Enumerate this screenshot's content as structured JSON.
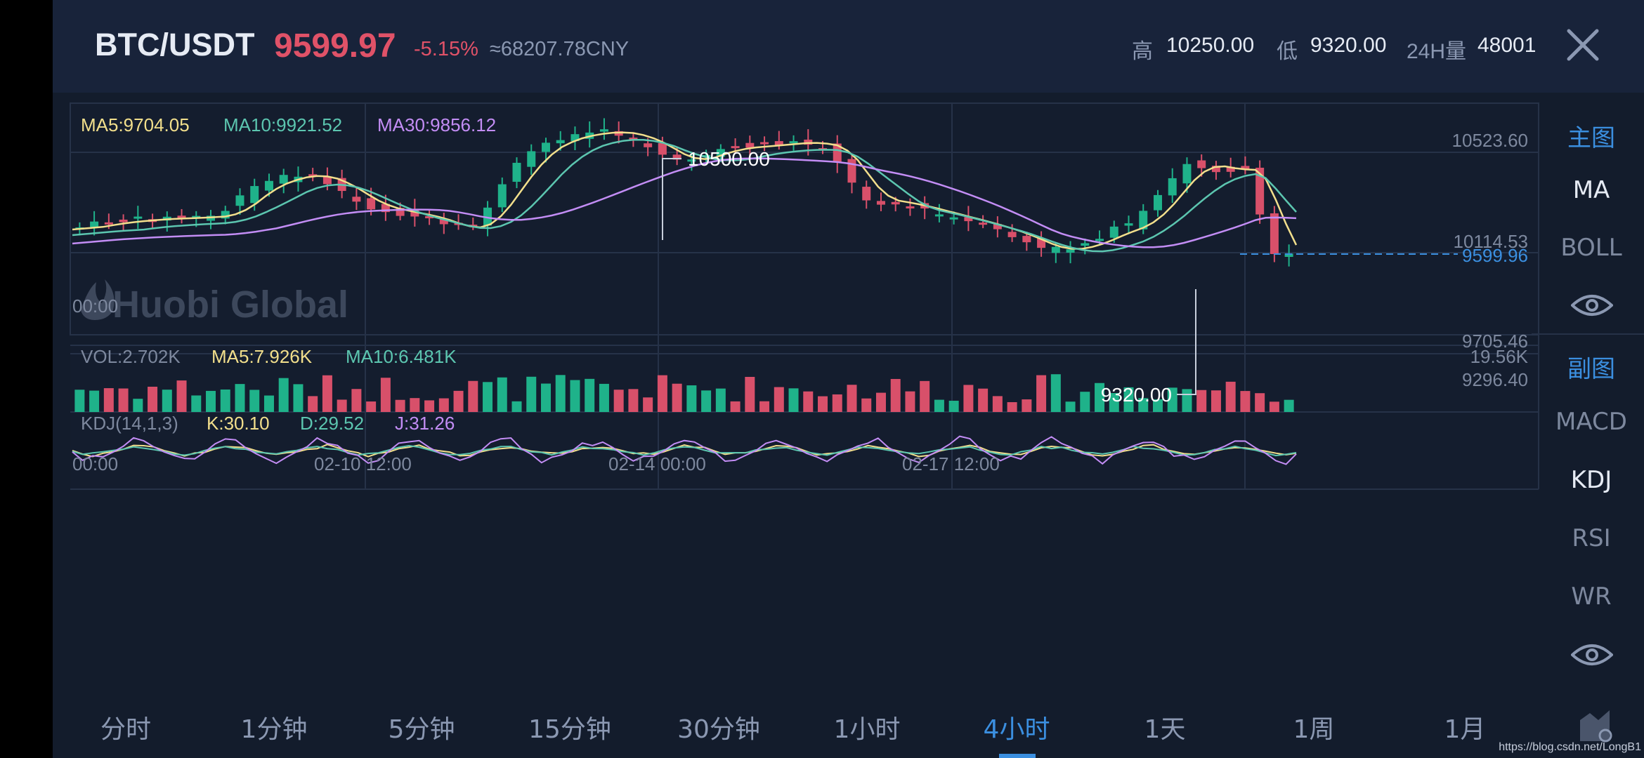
{
  "header": {
    "pair": "BTC/USDT",
    "price": "9599.97",
    "change": "-5.15%",
    "cny": "≈68207.78CNY",
    "high_label": "高",
    "high_value": "10250.00",
    "low_label": "低",
    "low_value": "9320.00",
    "vol_label": "24H量",
    "vol_value": "48001",
    "close_icon": "close-icon"
  },
  "main_chart": {
    "ma5": "MA5:9704.05",
    "ma10": "MA10:9921.52",
    "ma30": "MA30:9856.12",
    "price_axis": [
      "10523.60",
      "10114.53",
      "9705.46",
      "9599.96",
      "9296.40"
    ],
    "time_axis": [
      "00:00",
      "02-10 12:00",
      "02-14 00:00",
      "02-17 12:00"
    ],
    "max_annotation": "10500.00",
    "min_annotation": "9320.00",
    "watermark": "Huobi Global",
    "colors": {
      "up": "#1fb28a",
      "down": "#d8506a",
      "ma5": "#f2df8c",
      "ma10": "#5cc6b0",
      "ma30": "#c38df5",
      "grid": "#263248"
    }
  },
  "volume_chart": {
    "vol": "VOL:2.702K",
    "ma5": "MA5:7.926K",
    "ma10": "MA10:6.481K",
    "max": "19.56K"
  },
  "kdj_chart": {
    "label": "KDJ(14,1,3)",
    "k": "K:30.10",
    "d": "D:29.52",
    "j": "J:31.26"
  },
  "sidebar": {
    "main_header": "主图",
    "main_items": [
      "MA",
      "BOLL"
    ],
    "sub_header": "副图",
    "sub_items": [
      "MACD",
      "KDJ",
      "RSI",
      "WR"
    ],
    "eye_icon": "eye-icon"
  },
  "intervals": {
    "items": [
      "分时",
      "1分钟",
      "5分钟",
      "15分钟",
      "30分钟",
      "1小时",
      "4小时",
      "1天",
      "1周",
      "1月"
    ],
    "active": "4小时"
  },
  "watermark_url": "https://blog.csdn.net/LongB1"
}
